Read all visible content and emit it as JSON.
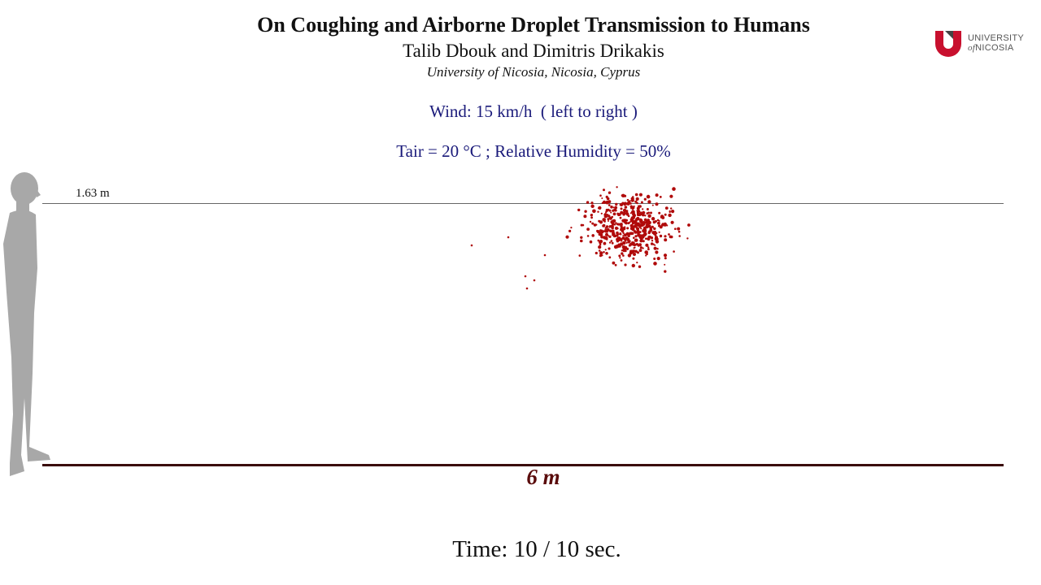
{
  "header": {
    "title": "On Coughing and Airborne Droplet Transmission to Humans",
    "authors": "Talib Dbouk and Dimitris Drikakis",
    "affiliation": "University of Nicosia, Nicosia, Cyprus"
  },
  "logo": {
    "line1": "UNIVERSITY",
    "line2_prefix": "of",
    "line2": "NICOSIA",
    "color": "#c8102e"
  },
  "conditions": {
    "wind": "Wind: 15 km/h  ( left to right )",
    "air": "Tair = 20 °C ; Relative Humidity = 50%"
  },
  "scene": {
    "height_label": "1.63 m",
    "distance_label": "6 m",
    "droplet_color": "#b00a0a",
    "figure_color": "#a8a8a8"
  },
  "footer": {
    "time": "Time: 10 / 10 sec."
  }
}
